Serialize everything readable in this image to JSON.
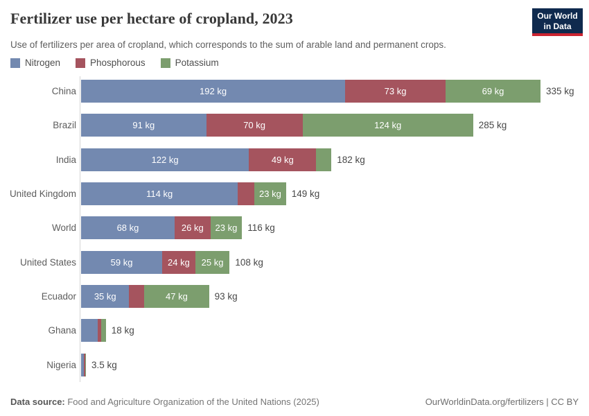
{
  "header": {
    "title": "Fertilizer use per hectare of cropland, 2023",
    "subtitle": "Use of fertilizers per area of cropland, which corresponds to the sum of arable land and permanent crops.",
    "logo": {
      "line1": "Our World",
      "line2": "in Data",
      "bg_color": "#0f2a4e",
      "accent_color": "#cb2431"
    }
  },
  "legend": [
    {
      "label": "Nitrogen",
      "color": "#7389b0"
    },
    {
      "label": "Phosphorous",
      "color": "#a5545e"
    },
    {
      "label": "Potassium",
      "color": "#7c9e6e"
    }
  ],
  "chart_data": {
    "type": "bar",
    "orientation": "horizontal",
    "stacked": true,
    "unit": "kg",
    "xlim": [
      0,
      335
    ],
    "grid": false,
    "legend_position": "top-left",
    "categories": [
      "China",
      "Brazil",
      "India",
      "United Kingdom",
      "World",
      "United States",
      "Ecuador",
      "Ghana",
      "Nigeria"
    ],
    "series": [
      {
        "name": "Nitrogen",
        "color": "#7389b0",
        "values": [
          192,
          91,
          122,
          114,
          68,
          59,
          35,
          12,
          2
        ]
      },
      {
        "name": "Phosphorous",
        "color": "#a5545e",
        "values": [
          73,
          70,
          49,
          12,
          26,
          24,
          11,
          2.5,
          1
        ]
      },
      {
        "name": "Potassium",
        "color": "#7c9e6e",
        "values": [
          69,
          124,
          11,
          23,
          23,
          25,
          47,
          3.5,
          0.5
        ]
      }
    ],
    "segment_labels": [
      [
        "192 kg",
        "73 kg",
        "69 kg"
      ],
      [
        "91 kg",
        "70 kg",
        "124 kg"
      ],
      [
        "122 kg",
        "49 kg",
        ""
      ],
      [
        "114 kg",
        "",
        "23 kg"
      ],
      [
        "68 kg",
        "26 kg",
        "23 kg"
      ],
      [
        "59 kg",
        "24 kg",
        "25 kg"
      ],
      [
        "35 kg",
        "",
        "47 kg"
      ],
      [
        "",
        "",
        ""
      ],
      [
        "",
        "",
        ""
      ]
    ],
    "totals": [
      "335 kg",
      "285 kg",
      "182 kg",
      "149 kg",
      "116 kg",
      "108 kg",
      "93 kg",
      "18 kg",
      "3.5 kg"
    ]
  },
  "footer": {
    "source_label": "Data source:",
    "source_text": " Food and Agriculture Organization of the United Nations (2025)",
    "credit": "OurWorldinData.org/fertilizers | CC BY"
  }
}
